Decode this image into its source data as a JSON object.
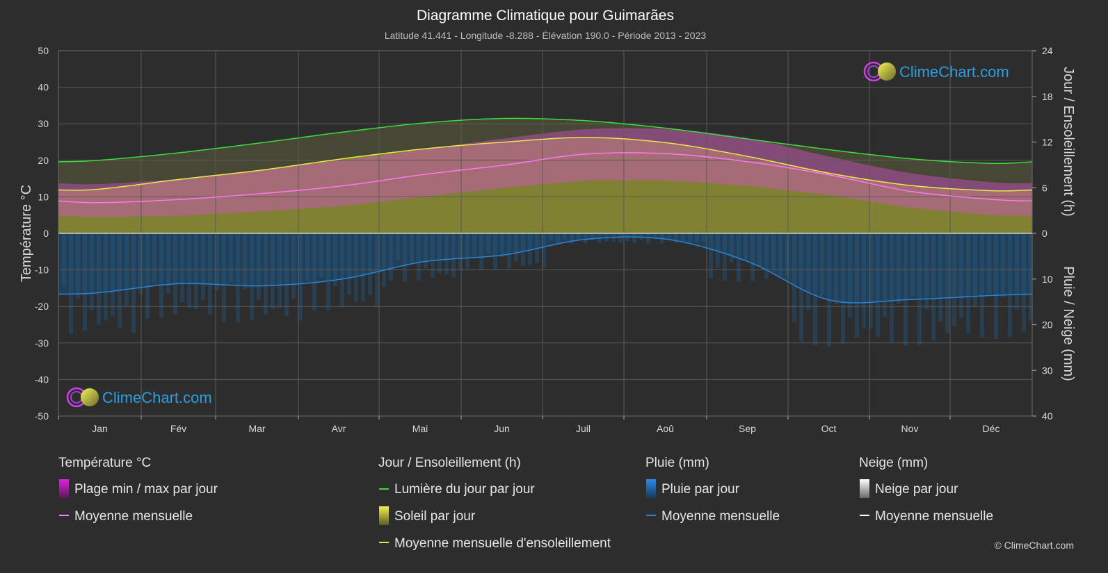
{
  "title": "Diagramme Climatique pour Guimarães",
  "subtitle": "Latitude 41.441 - Longitude -8.288 - Élévation 190.0 - Période 2013 - 2023",
  "logo_text": "ClimeChart.com",
  "copyright": "© ClimeChart.com",
  "axes": {
    "left_title": "Température °C",
    "right_top_title": "Jour / Ensoleillement (h)",
    "right_bottom_title": "Pluie / Neige (mm)",
    "left_ticks": [
      "50",
      "40",
      "30",
      "20",
      "10",
      "0",
      "-10",
      "-20",
      "-30",
      "-40",
      "-50"
    ],
    "right_top_ticks": [
      "24",
      "18",
      "12",
      "6",
      "0"
    ],
    "right_bottom_ticks": [
      "10",
      "20",
      "30",
      "40"
    ]
  },
  "legend": {
    "temperature": {
      "heading": "Température °C",
      "range_label": "Plage min / max par jour",
      "mean_label": "Moyenne mensuelle"
    },
    "sunshine": {
      "heading": "Jour / Ensoleillement (h)",
      "daylight_label": "Lumière du jour par jour",
      "sun_label": "Soleil par jour",
      "sun_mean_label": "Moyenne mensuelle d'ensoleillement"
    },
    "rain": {
      "heading": "Pluie (mm)",
      "daily_label": "Pluie par jour",
      "mean_label": "Moyenne mensuelle"
    },
    "snow": {
      "heading": "Neige (mm)",
      "daily_label": "Neige par jour",
      "mean_label": "Moyenne mensuelle"
    }
  },
  "colors": {
    "background": "#2d2d2d",
    "grid": "#5a5a5a",
    "daylight": "#3ddc3d",
    "sunshine_mean": "#e8e84a",
    "sunshine_fill": "#8c8c32",
    "temp_mean": "#ff77ee",
    "temp_range": "#d050c8",
    "rain": "#2a84d8",
    "rain_fill": "#1e4e74",
    "logo_blue": "#2a9ee0"
  },
  "chart_data": {
    "type": "line",
    "months": [
      "Jan",
      "Fév",
      "Mar",
      "Avr",
      "Mai",
      "Jun",
      "Juil",
      "Aoû",
      "Sep",
      "Oct",
      "Nov",
      "Déc"
    ],
    "temperature_ylim": [
      -50,
      50
    ],
    "sun_ylim_hours": [
      0,
      24
    ],
    "precip_ylim_mm": [
      0,
      40
    ],
    "series": [
      {
        "name": "Lumière du jour par jour",
        "unit": "h",
        "values": [
          9.6,
          10.6,
          11.9,
          13.3,
          14.5,
          15.1,
          14.8,
          13.8,
          12.4,
          11.0,
          9.8,
          9.2
        ]
      },
      {
        "name": "Moyenne mensuelle d'ensoleillement",
        "unit": "h",
        "values": [
          5.8,
          7.1,
          8.3,
          9.8,
          11.1,
          12.0,
          12.6,
          11.9,
          10.1,
          7.9,
          6.3,
          5.6
        ]
      },
      {
        "name": "Moyenne mensuelle",
        "kind": "temperature",
        "unit": "°C",
        "values": [
          8.4,
          9.3,
          10.9,
          13.0,
          16.1,
          18.7,
          21.7,
          21.8,
          19.6,
          16.0,
          11.5,
          9.3
        ]
      },
      {
        "name": "Moyenne mensuelle",
        "kind": "rain",
        "unit": "mm",
        "values": [
          13.0,
          11.0,
          11.5,
          10.0,
          6.2,
          4.7,
          1.3,
          1.3,
          6.2,
          14.6,
          14.5,
          13.6
        ]
      }
    ],
    "temp_daily_max_mean": [
      13.5,
      15.0,
      17.5,
      20.0,
      23.0,
      26.0,
      28.5,
      28.5,
      26.0,
      21.0,
      16.5,
      14.0
    ],
    "temp_daily_min_mean": [
      4.5,
      4.8,
      6.0,
      7.5,
      10.0,
      12.5,
      14.5,
      14.5,
      13.0,
      10.5,
      7.0,
      5.0
    ]
  }
}
